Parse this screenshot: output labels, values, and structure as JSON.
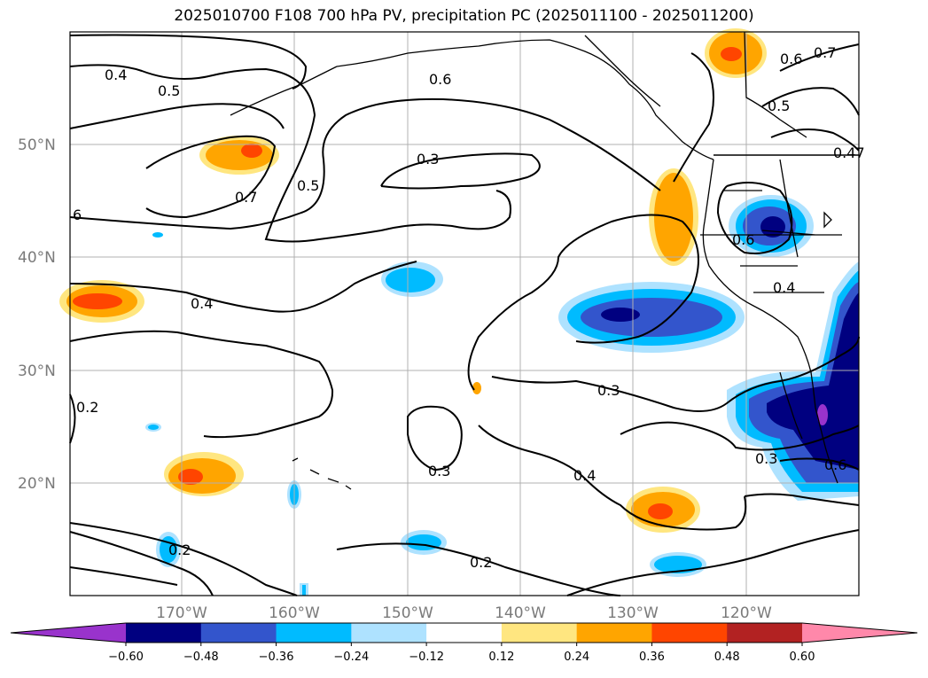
{
  "title": "2025010700 F108 700 hPa PV, precipitation PC (2025011100 - 2025011200)",
  "map": {
    "lat_labels": [
      "20°N",
      "30°N",
      "40°N",
      "50°N"
    ],
    "lon_labels": [
      "170°W",
      "160°W",
      "150°W",
      "140°W",
      "130°W",
      "120°W"
    ],
    "contour_labels": [
      {
        "text": "0.4",
        "id": "c1"
      },
      {
        "text": "0.5",
        "id": "c2"
      },
      {
        "text": "0.6",
        "id": "c3"
      },
      {
        "text": "0.6",
        "id": "c4"
      },
      {
        "text": "0.7",
        "id": "c5"
      },
      {
        "text": "0.5",
        "id": "c6"
      },
      {
        "text": "0.3",
        "id": "c7"
      },
      {
        "text": "0.5",
        "id": "c8"
      },
      {
        "text": "0.7",
        "id": "c9"
      },
      {
        "text": "6",
        "id": "c10"
      },
      {
        "text": "0.4",
        "id": "c11"
      },
      {
        "text": "0.6",
        "id": "c12"
      },
      {
        "text": "0.4",
        "id": "c13"
      },
      {
        "text": "0.3",
        "id": "c14"
      },
      {
        "text": "0.2",
        "id": "c15"
      },
      {
        "text": "0.3",
        "id": "c16"
      },
      {
        "text": "0.4",
        "id": "c17"
      },
      {
        "text": "0.3",
        "id": "c18"
      },
      {
        "text": "0.2",
        "id": "c19"
      },
      {
        "text": "0.2",
        "id": "c20"
      },
      {
        "text": "0.47",
        "id": "c21"
      },
      {
        "text": "0.6",
        "id": "c22"
      }
    ]
  },
  "colorbar": {
    "ticks": [
      "−0.60",
      "−0.48",
      "−0.36",
      "−0.24",
      "−0.12",
      "0.12",
      "0.24",
      "0.36",
      "0.48",
      "0.60"
    ],
    "colors": [
      "#9933cc",
      "#000080",
      "#3355cc",
      "#00bbff",
      "#aee2ff",
      "#ffffff",
      "#ffe680",
      "#ffa500",
      "#ff4500",
      "#b22222",
      "#ff88aa"
    ]
  }
}
